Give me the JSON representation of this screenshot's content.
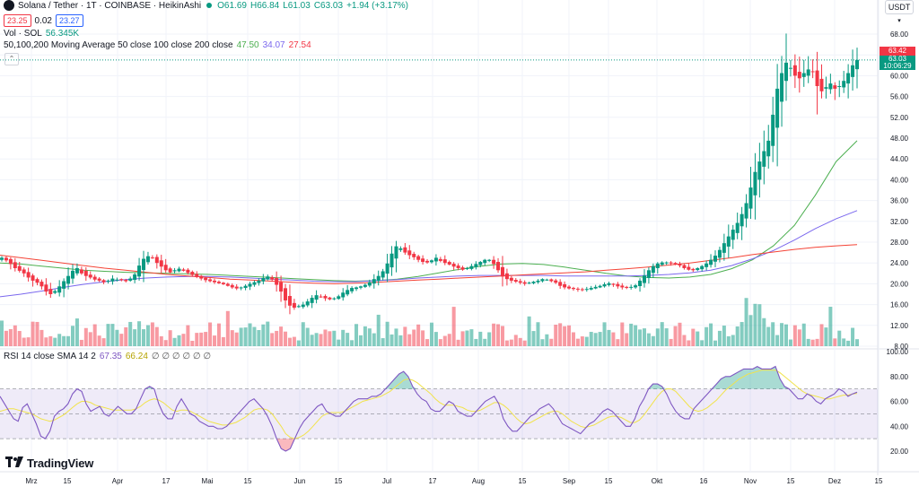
{
  "header": {
    "symbol_title": "Solana / Tether · 1T · COINBASE · HeikinAshi",
    "ohlc": {
      "o": "O61.69",
      "h": "H66.84",
      "l": "L61.03",
      "c": "C63.03",
      "chg": "+1.94 (+3.17%)"
    },
    "bid": "23.25",
    "spread": "0.02",
    "ask": "23.27",
    "vol_label": "Vol · SOL",
    "vol_value": "56.345K",
    "ma_label": "50,100,200 Moving Average 50 close 100 close 200 close",
    "ma50": "47.50",
    "ma100": "34.07",
    "ma200": "27.54",
    "currency": "USDT",
    "price_tag_red": "63.42",
    "price_tag_green": "63.03",
    "price_tag_time": "10:06:29",
    "collapse_icon": "chevron-up-icon",
    "logo": "TradingView",
    "colors": {
      "up": "#089981",
      "down": "#f23645",
      "ma50": "#4caf50",
      "ma100": "#7b68ee",
      "ma200": "#f44336",
      "rsi": "#7e57c2",
      "rsi_sma": "#f1e34b"
    }
  },
  "rsi_header": {
    "label": "RSI 14 close SMA 14 2",
    "rsi": "67.35",
    "sma": "66.24",
    "empty": "∅ ∅ ∅ ∅ ∅ ∅"
  },
  "chart_data": [
    {
      "type": "candlestick",
      "title": "Solana / Tether · 1T · COINBASE · HeikinAshi",
      "x_tick_labels": [
        "Mrz",
        "15",
        "Apr",
        "17",
        "Mai",
        "15",
        "Jun",
        "15",
        "Jul",
        "17",
        "Aug",
        "15",
        "Sep",
        "15",
        "Okt",
        "16",
        "Nov",
        "15",
        "Dez",
        "15"
      ],
      "y_tick_labels": [
        "68.00",
        "64.00",
        "60.00",
        "56.00",
        "52.00",
        "48.00",
        "44.00",
        "40.00",
        "36.00",
        "32.00",
        "28.00",
        "24.00",
        "20.00",
        "16.00",
        "12.00",
        "8.00"
      ],
      "ylim": [
        8,
        68
      ],
      "close_series": [
        25,
        24.5,
        23.8,
        23,
        22.5,
        22,
        21.2,
        20.6,
        20.2,
        19.5,
        18.5,
        18,
        18.6,
        19.5,
        20.5,
        21.5,
        22.5,
        23,
        22,
        21.5,
        21.2,
        20.8,
        20.6,
        20.3,
        20.6,
        21,
        20.8,
        20.7,
        20.5,
        21,
        21.8,
        23.5,
        24.8,
        25.3,
        25,
        24,
        23.3,
        22.6,
        22.2,
        22.6,
        22.9,
        22.5,
        22.1,
        21.7,
        21.3,
        21,
        20.7,
        20.5,
        20.3,
        20.1,
        19.9,
        19.6,
        19.3,
        19.1,
        19.3,
        19.6,
        20,
        20.3,
        20.6,
        21.1,
        21.4,
        20.8,
        19.8,
        18.5,
        16.8,
        15.8,
        15.4,
        15.7,
        16,
        16.6,
        17.3,
        17.8,
        17.5,
        17.2,
        17,
        17.2,
        17.6,
        18.3,
        18.8,
        19.2,
        19.3,
        19.5,
        19.8,
        20.3,
        20.9,
        21.5,
        22.4,
        23.9,
        25.8,
        27.2,
        26.8,
        26,
        25.5,
        25.1,
        24.6,
        24.2,
        24.1,
        24.5,
        25,
        24.4,
        24,
        23.7,
        23.3,
        23,
        22.7,
        23,
        23.4,
        23.8,
        24.2,
        24.6,
        24.6,
        23.8,
        22.6,
        21.4,
        20.9,
        20.6,
        20.4,
        20.2,
        20,
        20.2,
        20.4,
        20.6,
        20.9,
        20.8,
        20.5,
        20.2,
        19.6,
        19.3,
        19.1,
        19,
        18.9,
        18.8,
        19,
        19.2,
        19.4,
        19.6,
        19.9,
        20.1,
        19.8,
        19.5,
        19.3,
        19.2,
        19.4,
        19.7,
        20.6,
        21.6,
        22.6,
        23.4,
        23.9,
        24.1,
        24.1,
        23.9,
        23.7,
        23.5,
        23,
        22.7,
        22.6,
        23,
        23.4,
        23.9,
        24.6,
        25.4,
        26.5,
        27.8,
        29.1,
        30.4,
        31.7,
        33.4,
        35.5,
        38.5,
        41.5,
        43.5,
        45.5,
        47.5,
        52.5,
        57.5,
        60.5,
        62.5,
        61.5,
        60,
        59.5,
        60.5,
        61.2,
        60.8,
        58,
        57,
        57.8,
        58.5,
        57.5,
        58,
        59,
        60.5,
        62,
        63.03
      ],
      "ma50": [
        24,
        23.8,
        23.4,
        23.0,
        22.6,
        22.4,
        22.2,
        22.1,
        22.0,
        21.9,
        21.8,
        21.6,
        21.4,
        21.2,
        21.0,
        20.8,
        20.6,
        20.5,
        20.6,
        20.9,
        21.4,
        22.1,
        22.8,
        23.4,
        23.8,
        23.9,
        23.7,
        23.2,
        22.6,
        22.0,
        21.5,
        21.2,
        21.1,
        21.3,
        21.8,
        22.9,
        24.6,
        27.3,
        31.2,
        37.0,
        43.5,
        47.5
      ],
      "ma100": [
        17.5,
        18.0,
        18.6,
        19.3,
        19.9,
        20.4,
        20.8,
        21.1,
        21.3,
        21.4,
        21.4,
        21.3,
        21.1,
        20.9,
        20.7,
        20.5,
        20.4,
        20.4,
        20.6,
        20.8,
        21.1,
        21.3,
        21.5,
        21.6,
        21.6,
        21.6,
        21.6,
        21.5,
        21.5,
        21.5,
        21.5,
        21.6,
        21.8,
        22.1,
        22.6,
        23.5,
        24.8,
        26.4,
        28.4,
        30.6,
        32.5,
        34.07
      ],
      "ma200": [
        25.5,
        25.0,
        24.5,
        24.0,
        23.5,
        23.0,
        22.6,
        22.2,
        21.8,
        21.5,
        21.2,
        20.9,
        20.7,
        20.5,
        20.3,
        20.1,
        20.0,
        20.1,
        20.3,
        20.5,
        20.7,
        20.9,
        21.1,
        21.3,
        21.5,
        21.7,
        21.9,
        22.1,
        22.3,
        22.6,
        22.9,
        23.2,
        23.6,
        24.0,
        24.5,
        25.0,
        25.6,
        26.1,
        26.6,
        27.0,
        27.3,
        27.54
      ]
    },
    {
      "type": "line",
      "title": "RSI 14 close SMA 14 2",
      "y_tick_labels": [
        "100.00",
        "80.00",
        "60.00",
        "40.00",
        "20.00"
      ],
      "ylim": [
        20,
        100
      ],
      "bands": [
        30,
        50,
        70
      ],
      "rsi": [
        64,
        58,
        52,
        46,
        44,
        55,
        58,
        50,
        42,
        32,
        30,
        36,
        48,
        52,
        54,
        58,
        66,
        70,
        68,
        58,
        52,
        54,
        56,
        50,
        48,
        52,
        56,
        53,
        50,
        50,
        54,
        62,
        70,
        72,
        70,
        58,
        50,
        46,
        46,
        56,
        62,
        56,
        50,
        48,
        44,
        42,
        40,
        40,
        38,
        38,
        40,
        44,
        48,
        52,
        56,
        60,
        62,
        58,
        54,
        48,
        40,
        30,
        22,
        20,
        22,
        30,
        38,
        44,
        48,
        52,
        56,
        58,
        52,
        50,
        48,
        48,
        52,
        56,
        60,
        62,
        62,
        62,
        64,
        64,
        66,
        70,
        74,
        78,
        82,
        84,
        80,
        72,
        66,
        62,
        60,
        54,
        52,
        52,
        56,
        60,
        58,
        52,
        50,
        48,
        48,
        52,
        56,
        60,
        62,
        64,
        58,
        46,
        40,
        36,
        36,
        40,
        44,
        48,
        50,
        54,
        56,
        58,
        54,
        48,
        42,
        40,
        38,
        36,
        34,
        38,
        42,
        44,
        48,
        52,
        54,
        52,
        48,
        44,
        40,
        40,
        46,
        56,
        62,
        70,
        74,
        74,
        72,
        66,
        58,
        52,
        48,
        46,
        46,
        54,
        58,
        62,
        66,
        70,
        74,
        78,
        80,
        80,
        82,
        84,
        86,
        86,
        86,
        88,
        86,
        86,
        86,
        88,
        78,
        72,
        70,
        66,
        62,
        62,
        66,
        64,
        60,
        58,
        62,
        64,
        66,
        70,
        68,
        64,
        66,
        67.35
      ],
      "rsi_sma": [
        52,
        53,
        54,
        54,
        53,
        52,
        51,
        50,
        48,
        46,
        45,
        44,
        45,
        47,
        49,
        52,
        55,
        58,
        60,
        60,
        59,
        57,
        56,
        55,
        54,
        53,
        53,
        53,
        53,
        53,
        54,
        56,
        59,
        61,
        62,
        61,
        59,
        56,
        53,
        52,
        53,
        53,
        52,
        50,
        48,
        46,
        44,
        43,
        42,
        41,
        41,
        42,
        43,
        45,
        47,
        50,
        53,
        54,
        54,
        53,
        50,
        45,
        40,
        34,
        31,
        30,
        31,
        33,
        36,
        40,
        44,
        48,
        50,
        51,
        51,
        51,
        52,
        54,
        56,
        58,
        60,
        61,
        62,
        63,
        64,
        66,
        68,
        71,
        74,
        77,
        78,
        77,
        75,
        72,
        69,
        66,
        62,
        59,
        57,
        57,
        57,
        56,
        55,
        53,
        52,
        52,
        53,
        55,
        57,
        59,
        59,
        57,
        54,
        50,
        46,
        43,
        42,
        43,
        45,
        47,
        49,
        51,
        52,
        52,
        50,
        47,
        44,
        42,
        40,
        39,
        40,
        41,
        43,
        45,
        47,
        48,
        48,
        47,
        45,
        43,
        43,
        45,
        49,
        54,
        59,
        64,
        68,
        70,
        70,
        68,
        64,
        60,
        56,
        53,
        52,
        53,
        55,
        58,
        61,
        65,
        69,
        72,
        75,
        78,
        80,
        82,
        83,
        84,
        85,
        85,
        85,
        85,
        83,
        80,
        77,
        74,
        71,
        68,
        66,
        65,
        64,
        63,
        62,
        62,
        63,
        64,
        65,
        65,
        66,
        66.24
      ]
    }
  ]
}
